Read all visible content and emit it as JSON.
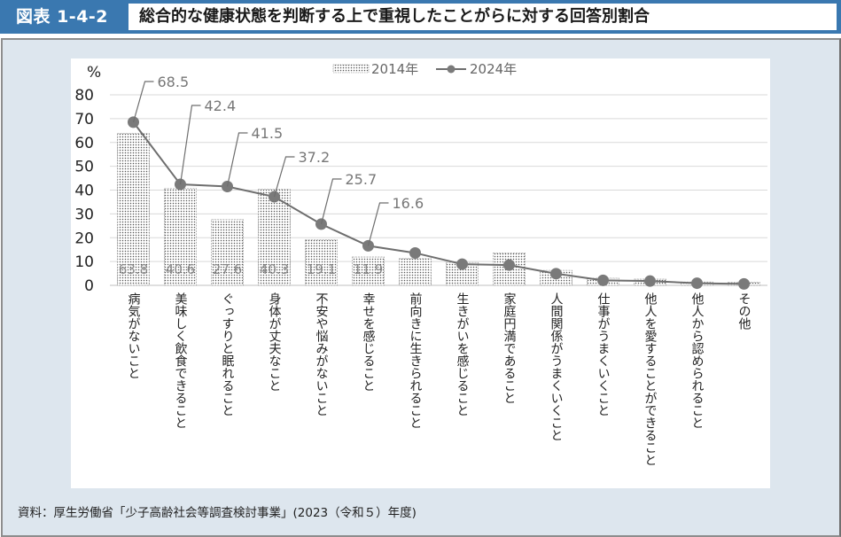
{
  "header": {
    "figure_number": "図表 1-4-2",
    "title": "総合的な健康状態を判断する上で重視したことがらに対する回答別割合"
  },
  "source": "資料：厚生労働省「少子高齢社会等調査検討事業」(2023（令和５）年度)",
  "colors": {
    "header_blue": "#3a78b0",
    "panel_bg": "#dde6ee",
    "line": "#6e6e6e",
    "marker": "#7a7a7a",
    "bar_dots": "#555555",
    "grid": "#d9d9d9"
  },
  "chart_data": {
    "type": "bar+line",
    "title": "",
    "ylabel": "%",
    "xlabel": "",
    "ylim": [
      0,
      80
    ],
    "yticks": [
      0,
      10,
      20,
      30,
      40,
      50,
      60,
      70,
      80
    ],
    "grid": true,
    "legend_position": "top-center",
    "categories": [
      "病気がないこと",
      "美味しく飲食できること",
      "ぐっすりと眠れること",
      "身体が丈夫なこと",
      "不安や悩みがないこと",
      "幸せを感じること",
      "前向きに生きられること",
      "生きがいを感じること",
      "家庭円満であること",
      "人間関係がうまくいくこと",
      "仕事がうまくいくこと",
      "他人を愛することができること",
      "他人から認められること",
      "その他"
    ],
    "series": [
      {
        "name": "2014年",
        "type": "bar",
        "values": [
          63.8,
          40.6,
          27.6,
          40.3,
          19.1,
          11.9,
          11.2,
          9.6,
          13.6,
          6.3,
          3.0,
          2.6,
          1.4,
          1.2
        ],
        "labels": [
          "63.8",
          "40.6",
          "27.6",
          "40.3",
          "19.1",
          "11.9"
        ]
      },
      {
        "name": "2024年",
        "type": "line",
        "values": [
          68.5,
          42.4,
          41.5,
          37.2,
          25.7,
          16.6,
          13.6,
          8.9,
          8.5,
          4.9,
          2.1,
          1.8,
          0.9,
          0.6
        ],
        "labels": [
          "68.5",
          "42.4",
          "41.5",
          "37.2",
          "25.7",
          "16.6"
        ]
      }
    ]
  }
}
